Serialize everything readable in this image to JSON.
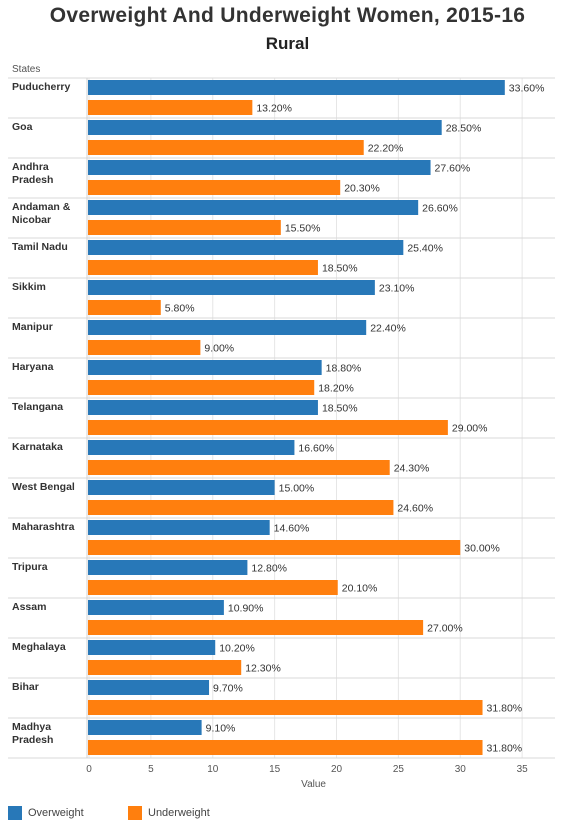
{
  "title": "Overweight And Underweight Women, 2015-16",
  "subtitle": "Rural",
  "colors": {
    "overweight": "#2878b8",
    "underweight": "#ff7f0e"
  },
  "chart_data": {
    "type": "bar",
    "orientation": "horizontal",
    "ylabel": "States",
    "xlabel": "Value",
    "xlim": [
      0,
      35
    ],
    "xticks": [
      0,
      5,
      10,
      15,
      20,
      25,
      30,
      35
    ],
    "grid": true,
    "legend": "bottom-left",
    "categories": [
      [
        "Puducherry"
      ],
      [
        "Goa"
      ],
      [
        "Andhra",
        "Pradesh"
      ],
      [
        "Andaman &",
        "Nicobar"
      ],
      [
        "Tamil Nadu"
      ],
      [
        "Sikkim"
      ],
      [
        "Manipur"
      ],
      [
        "Haryana"
      ],
      [
        "Telangana"
      ],
      [
        "Karnataka"
      ],
      [
        "West Bengal"
      ],
      [
        "Maharashtra"
      ],
      [
        "Tripura"
      ],
      [
        "Assam"
      ],
      [
        "Meghalaya"
      ],
      [
        "Bihar"
      ],
      [
        "Madhya",
        "Pradesh"
      ]
    ],
    "series": [
      {
        "name": "Overweight",
        "values": [
          33.6,
          28.5,
          27.6,
          26.6,
          25.4,
          23.1,
          22.4,
          18.8,
          18.5,
          16.6,
          15.0,
          14.6,
          12.8,
          10.9,
          10.2,
          9.7,
          9.1
        ],
        "labels": [
          "33.60%",
          "28.50%",
          "27.60%",
          "26.60%",
          "25.40%",
          "23.10%",
          "22.40%",
          "18.80%",
          "18.50%",
          "16.60%",
          "15.00%",
          "14.60%",
          "12.80%",
          "10.90%",
          "10.20%",
          "9.70%",
          "9.10%"
        ]
      },
      {
        "name": "Underweight",
        "values": [
          13.2,
          22.2,
          20.3,
          15.5,
          18.5,
          5.8,
          9.0,
          18.2,
          29.0,
          24.3,
          24.6,
          30.0,
          20.1,
          27.0,
          12.3,
          31.8,
          31.8
        ],
        "labels": [
          "13.20%",
          "22.20%",
          "20.30%",
          "15.50%",
          "18.50%",
          "5.80%",
          "9.00%",
          "18.20%",
          "29.00%",
          "24.30%",
          "24.60%",
          "30.00%",
          "20.10%",
          "27.00%",
          "12.30%",
          "31.80%",
          "31.80%"
        ]
      }
    ]
  }
}
